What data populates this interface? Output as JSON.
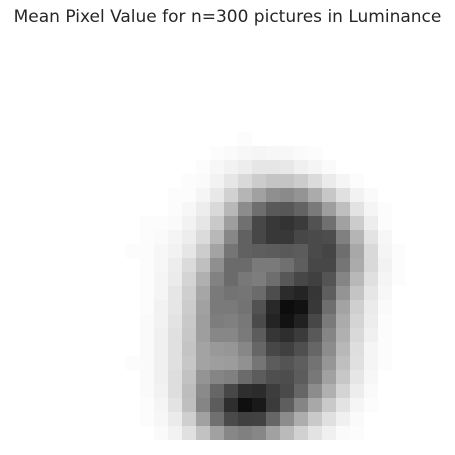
{
  "chart_data": {
    "type": "heatmap",
    "title": "Mean Pixel Value for n=300 pictures in Luminance",
    "xlabel": "",
    "ylabel": "",
    "grid": false,
    "axes_visible": false,
    "colormap": "gray_r",
    "color_low": "#ffffff",
    "color_high": "#000000",
    "vmin": 0,
    "vmax": 1,
    "rows": 28,
    "cols": 28,
    "values": [
      [
        0,
        0,
        0,
        0,
        0,
        0,
        0,
        0,
        0,
        0,
        0,
        0,
        0,
        0,
        0,
        0,
        0,
        0,
        0,
        0,
        0,
        0,
        0,
        0,
        0,
        0,
        0,
        0
      ],
      [
        0,
        0,
        0,
        0,
        0,
        0,
        0,
        0,
        0,
        0,
        0,
        0,
        0,
        0,
        0,
        0,
        0,
        0,
        0,
        0,
        0,
        0,
        0,
        0,
        0,
        0,
        0,
        0
      ],
      [
        0,
        0,
        0,
        0,
        0,
        0,
        0,
        0,
        0,
        0,
        0,
        0,
        0,
        0,
        0,
        0,
        0,
        0,
        0,
        0,
        0,
        0,
        0,
        0,
        0,
        0,
        0,
        0
      ],
      [
        0,
        0,
        0,
        0,
        0,
        0,
        0,
        0,
        0,
        0,
        0,
        0,
        0,
        0,
        0,
        0,
        0,
        0,
        0,
        0,
        0,
        0,
        0,
        0,
        0,
        0,
        0,
        0
      ],
      [
        0,
        0,
        0,
        0,
        0,
        0,
        0,
        0,
        0,
        0,
        0,
        0,
        0,
        0,
        0,
        0,
        0,
        0,
        0,
        0,
        0,
        0,
        0,
        0,
        0,
        0,
        0,
        0
      ],
      [
        0,
        0,
        0,
        0,
        0,
        0,
        0,
        0,
        0,
        0,
        0,
        0,
        0,
        0,
        0,
        0,
        0,
        0,
        0,
        0,
        0,
        0,
        0,
        0,
        0,
        0,
        0,
        0
      ],
      [
        0,
        0,
        0,
        0,
        0,
        0,
        0,
        0,
        0,
        0,
        0,
        0,
        0,
        0,
        0.01,
        0,
        0,
        0,
        0,
        0,
        0,
        0,
        0,
        0,
        0,
        0,
        0,
        0
      ],
      [
        0,
        0,
        0,
        0,
        0,
        0,
        0,
        0,
        0,
        0,
        0,
        0,
        0.01,
        0.02,
        0.03,
        0.04,
        0.03,
        0.03,
        0.02,
        0.01,
        0,
        0,
        0,
        0,
        0,
        0,
        0,
        0
      ],
      [
        0,
        0,
        0,
        0,
        0,
        0,
        0,
        0,
        0,
        0,
        0,
        0.01,
        0.03,
        0.05,
        0.07,
        0.1,
        0.1,
        0.09,
        0.06,
        0.04,
        0.02,
        0,
        0,
        0,
        0,
        0,
        0,
        0
      ],
      [
        0,
        0,
        0,
        0,
        0,
        0,
        0,
        0,
        0,
        0,
        0.01,
        0.02,
        0.05,
        0.1,
        0.15,
        0.2,
        0.23,
        0.23,
        0.2,
        0.14,
        0.08,
        0.04,
        0.01,
        0,
        0,
        0,
        0,
        0
      ],
      [
        0,
        0,
        0,
        0,
        0,
        0,
        0,
        0,
        0,
        0.01,
        0.01,
        0.04,
        0.09,
        0.18,
        0.29,
        0.37,
        0.44,
        0.46,
        0.42,
        0.33,
        0.22,
        0.12,
        0.05,
        0.02,
        0,
        0,
        0,
        0
      ],
      [
        0,
        0,
        0,
        0,
        0,
        0,
        0,
        0,
        0,
        0.01,
        0.03,
        0.07,
        0.15,
        0.28,
        0.45,
        0.57,
        0.65,
        0.66,
        0.61,
        0.52,
        0.38,
        0.25,
        0.11,
        0.04,
        0.01,
        0,
        0,
        0
      ],
      [
        0,
        0,
        0,
        0,
        0,
        0,
        0,
        0.01,
        0.01,
        0.02,
        0.05,
        0.1,
        0.21,
        0.38,
        0.56,
        0.72,
        0.78,
        0.8,
        0.77,
        0.68,
        0.56,
        0.37,
        0.2,
        0.07,
        0.01,
        0,
        0,
        0
      ],
      [
        0,
        0,
        0,
        0,
        0,
        0,
        0,
        0.01,
        0.02,
        0.04,
        0.07,
        0.14,
        0.28,
        0.47,
        0.62,
        0.72,
        0.78,
        0.78,
        0.72,
        0.71,
        0.7,
        0.5,
        0.29,
        0.11,
        0.03,
        0,
        0,
        0
      ],
      [
        0,
        0,
        0,
        0,
        0,
        0,
        0.01,
        0.01,
        0.03,
        0.05,
        0.1,
        0.2,
        0.36,
        0.54,
        0.62,
        0.63,
        0.64,
        0.65,
        0.64,
        0.71,
        0.73,
        0.57,
        0.34,
        0.15,
        0.04,
        0.01,
        0,
        0
      ],
      [
        0,
        0,
        0,
        0,
        0,
        0,
        0,
        0.01,
        0.03,
        0.07,
        0.14,
        0.25,
        0.44,
        0.58,
        0.58,
        0.52,
        0.52,
        0.56,
        0.63,
        0.72,
        0.72,
        0.54,
        0.33,
        0.15,
        0.05,
        0.01,
        0,
        0
      ],
      [
        0,
        0,
        0,
        0,
        0,
        0,
        0,
        0.01,
        0.04,
        0.08,
        0.17,
        0.31,
        0.49,
        0.58,
        0.53,
        0.51,
        0.57,
        0.66,
        0.72,
        0.75,
        0.67,
        0.48,
        0.28,
        0.12,
        0.04,
        0.01,
        0,
        0
      ],
      [
        0,
        0,
        0,
        0,
        0,
        0,
        0,
        0.01,
        0.04,
        0.1,
        0.19,
        0.35,
        0.52,
        0.55,
        0.54,
        0.58,
        0.7,
        0.83,
        0.86,
        0.79,
        0.63,
        0.42,
        0.23,
        0.1,
        0.03,
        0,
        0,
        0
      ],
      [
        0,
        0,
        0,
        0,
        0,
        0,
        0,
        0.01,
        0.05,
        0.1,
        0.2,
        0.37,
        0.52,
        0.52,
        0.55,
        0.68,
        0.84,
        0.95,
        0.93,
        0.78,
        0.57,
        0.36,
        0.19,
        0.08,
        0.02,
        0,
        0,
        0
      ],
      [
        0,
        0,
        0,
        0,
        0,
        0,
        0,
        0.02,
        0.05,
        0.11,
        0.21,
        0.38,
        0.51,
        0.5,
        0.53,
        0.71,
        0.86,
        0.93,
        0.87,
        0.72,
        0.52,
        0.33,
        0.17,
        0.07,
        0.01,
        0,
        0,
        0
      ],
      [
        0,
        0,
        0,
        0,
        0,
        0,
        0,
        0.02,
        0.06,
        0.12,
        0.22,
        0.38,
        0.47,
        0.47,
        0.52,
        0.64,
        0.79,
        0.82,
        0.77,
        0.65,
        0.48,
        0.31,
        0.15,
        0.06,
        0.01,
        0,
        0,
        0
      ],
      [
        0,
        0,
        0,
        0,
        0,
        0,
        0,
        0.02,
        0.06,
        0.12,
        0.23,
        0.36,
        0.4,
        0.41,
        0.47,
        0.6,
        0.72,
        0.75,
        0.69,
        0.6,
        0.45,
        0.28,
        0.13,
        0.04,
        0.01,
        0,
        0,
        0
      ],
      [
        0,
        0,
        0,
        0,
        0,
        0,
        0.01,
        0.02,
        0.06,
        0.12,
        0.22,
        0.36,
        0.38,
        0.39,
        0.43,
        0.54,
        0.64,
        0.67,
        0.63,
        0.55,
        0.41,
        0.25,
        0.12,
        0.04,
        0.01,
        0,
        0,
        0
      ],
      [
        0,
        0,
        0,
        0,
        0,
        0,
        0,
        0.02,
        0.06,
        0.13,
        0.24,
        0.42,
        0.48,
        0.5,
        0.58,
        0.64,
        0.69,
        0.7,
        0.64,
        0.53,
        0.37,
        0.22,
        0.1,
        0.03,
        0,
        0,
        0,
        0
      ],
      [
        0,
        0,
        0,
        0,
        0,
        0,
        0,
        0.02,
        0.05,
        0.13,
        0.26,
        0.46,
        0.6,
        0.72,
        0.82,
        0.83,
        0.76,
        0.71,
        0.6,
        0.45,
        0.31,
        0.17,
        0.07,
        0.02,
        0,
        0,
        0,
        0
      ],
      [
        0,
        0,
        0,
        0,
        0,
        0,
        0,
        0.01,
        0.04,
        0.11,
        0.25,
        0.48,
        0.64,
        0.82,
        0.94,
        0.9,
        0.77,
        0.63,
        0.48,
        0.34,
        0.21,
        0.11,
        0.04,
        0.01,
        0,
        0,
        0,
        0
      ],
      [
        0,
        0,
        0,
        0,
        0,
        0,
        0,
        0.01,
        0.03,
        0.08,
        0.19,
        0.37,
        0.56,
        0.71,
        0.75,
        0.74,
        0.6,
        0.45,
        0.32,
        0.21,
        0.12,
        0.06,
        0.02,
        0,
        0,
        0,
        0,
        0
      ],
      [
        0,
        0,
        0,
        0,
        0,
        0,
        0,
        0,
        0.02,
        0.05,
        0.12,
        0.24,
        0.37,
        0.47,
        0.5,
        0.47,
        0.37,
        0.27,
        0.18,
        0.11,
        0.06,
        0.02,
        0.01,
        0,
        0,
        0,
        0,
        0
      ]
    ]
  }
}
